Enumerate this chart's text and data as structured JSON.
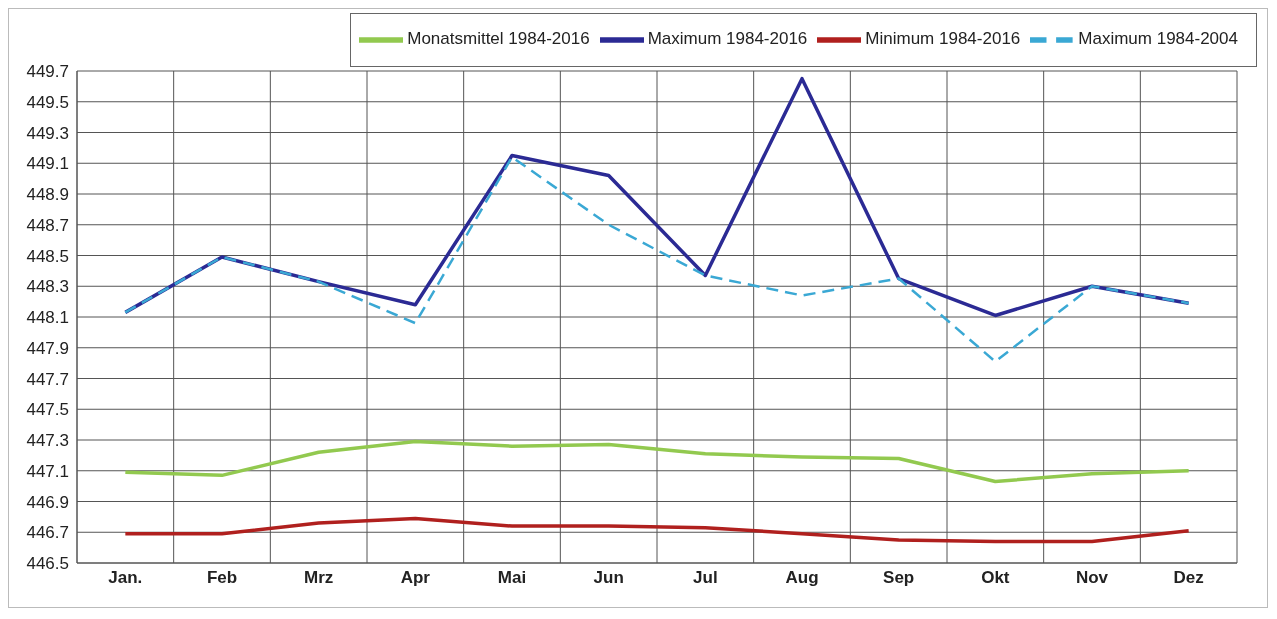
{
  "chart_data": {
    "type": "line",
    "categories": [
      "Jan.",
      "Feb",
      "Mrz",
      "Apr",
      "Mai",
      "Jun",
      "Jul",
      "Aug",
      "Sep",
      "Okt",
      "Nov",
      "Dez"
    ],
    "series": [
      {
        "name": "Monatsmittel 1984-2016",
        "color": "#92c94f",
        "values": [
          447.09,
          447.07,
          447.22,
          447.29,
          447.26,
          447.27,
          447.21,
          447.19,
          447.18,
          447.03,
          447.08,
          447.1
        ]
      },
      {
        "name": "Maximum 1984-2016",
        "color": "#2b2a94",
        "values": [
          448.13,
          448.49,
          448.33,
          448.18,
          449.15,
          449.02,
          448.37,
          449.65,
          448.35,
          448.11,
          448.3,
          448.19
        ]
      },
      {
        "name": "Minimum 1984-2016",
        "color": "#b0201e",
        "values": [
          446.69,
          446.69,
          446.76,
          446.79,
          446.74,
          446.74,
          446.73,
          446.69,
          446.65,
          446.64,
          446.64,
          446.71
        ]
      },
      {
        "name": "Maximum 1984-2004",
        "color": "#3aa8d4",
        "line_style": "dashed",
        "values": [
          448.13,
          448.49,
          448.33,
          448.06,
          449.14,
          448.7,
          448.37,
          448.24,
          448.35,
          447.81,
          448.3,
          448.19
        ]
      }
    ],
    "ylim": [
      446.5,
      449.7
    ],
    "yticks": [
      {
        "value": 446.5,
        "label": "446.5"
      },
      {
        "value": 446.7,
        "label": "446.7"
      },
      {
        "value": 446.9,
        "label": "446.9"
      },
      {
        "value": 447.1,
        "label": "447.1"
      },
      {
        "value": 447.3,
        "label": "447.3"
      },
      {
        "value": 447.5,
        "label": "447.5"
      },
      {
        "value": 447.7,
        "label": "447.7"
      },
      {
        "value": 447.9,
        "label": "447.9"
      },
      {
        "value": 448.1,
        "label": "448.1"
      },
      {
        "value": 448.3,
        "label": "448.3"
      },
      {
        "value": 448.5,
        "label": "448.5"
      },
      {
        "value": 448.7,
        "label": "448.7"
      },
      {
        "value": 448.9,
        "label": "448.9"
      },
      {
        "value": 449.1,
        "label": "449.1"
      },
      {
        "value": 449.3,
        "label": "449.3"
      },
      {
        "value": 449.5,
        "label": "449.5"
      },
      {
        "value": 449.7,
        "label": "449.7"
      }
    ],
    "grid": true,
    "legend": "top right",
    "marker": "none"
  }
}
